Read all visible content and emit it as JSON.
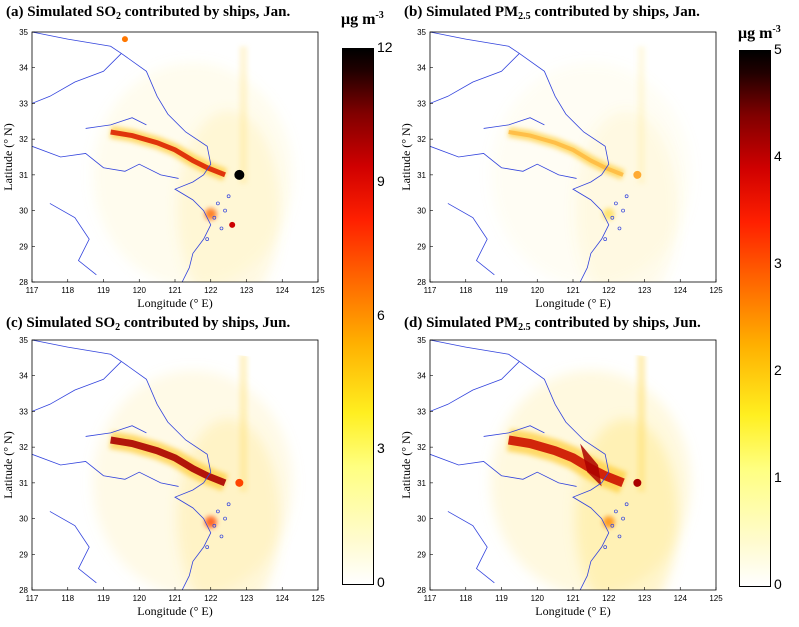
{
  "panels": [
    {
      "id": "a",
      "title": "(a) Simulated SO",
      "title_sub": "2",
      "title_rest": " contributed by ships, Jan.",
      "pollutant": "SO2",
      "month": "Jan."
    },
    {
      "id": "b",
      "title": "(b) Simulated PM",
      "title_sub": "2.5",
      "title_rest": " contributed by ships, Jan.",
      "pollutant": "PM2.5",
      "month": "Jan."
    },
    {
      "id": "c",
      "title": "(c) Simulated SO",
      "title_sub": "2",
      "title_rest": " contributed by ships, Jun.",
      "pollutant": "SO2",
      "month": "Jun."
    },
    {
      "id": "d",
      "title": "(d) Simulated PM",
      "title_sub": "2.5",
      "title_rest": " contributed by ships, Jun.",
      "pollutant": "PM2.5",
      "month": "Jun."
    }
  ],
  "axes": {
    "xlabel": "Longitude (° E)",
    "ylabel": "Latitude (° N)",
    "xticks": [
      "117",
      "118",
      "119",
      "120",
      "121",
      "122",
      "123",
      "124",
      "125"
    ],
    "yticks": [
      "35",
      "34",
      "33",
      "32",
      "31",
      "30",
      "29",
      "28"
    ],
    "xlim": [
      117,
      125
    ],
    "ylim": [
      28,
      35
    ]
  },
  "colorbars": [
    {
      "id": "so2",
      "unit": "μg m",
      "unit_sup": "-3",
      "ticks": [
        "12",
        "9",
        "6",
        "3",
        "0"
      ],
      "range": [
        0,
        12
      ]
    },
    {
      "id": "pm25",
      "unit": "μg m",
      "unit_sup": "-3",
      "ticks": [
        "5",
        "4",
        "3",
        "2",
        "1",
        "0"
      ],
      "range": [
        0,
        5
      ]
    }
  ],
  "colors": {
    "low": "#ffffff",
    "mid": "#ffff80",
    "high": "#ff2000",
    "max": "#000000",
    "coast": "#3344dd"
  }
}
